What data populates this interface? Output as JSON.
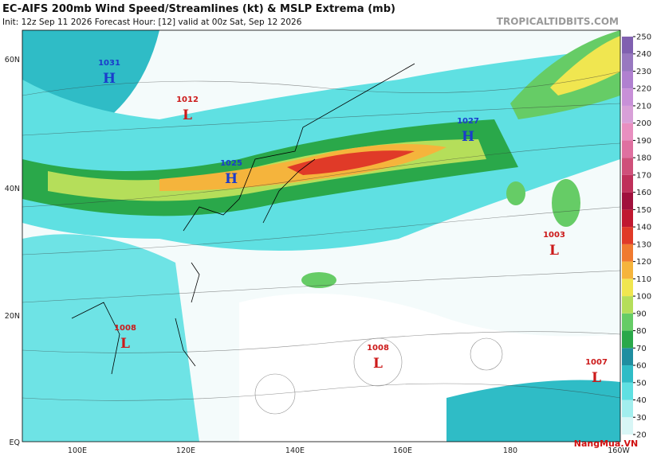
{
  "header": {
    "title": "EC-AIFS 200mb Wind Speed/Streamlines (kt) & MSLP Extrema (mb)",
    "subtitle": "Init: 12z Sep 11 2026   Forecast Hour: [12]   valid at 00z Sat, Sep 12 2026",
    "site": "TROPICALTIDBITS.COM"
  },
  "lat_labels": [
    "60N",
    "40N",
    "20N",
    "EQ"
  ],
  "lon_labels": [
    "100E",
    "120E",
    "140E",
    "160E",
    "180",
    "160W"
  ],
  "pressure_centers": [
    {
      "letter": "H",
      "value": "1031"
    },
    {
      "letter": "L",
      "value": "1012"
    },
    {
      "letter": "H",
      "value": "1025"
    },
    {
      "letter": "H",
      "value": "1027"
    },
    {
      "letter": "L",
      "value": "1003"
    },
    {
      "letter": "L",
      "value": "1008"
    },
    {
      "letter": "L",
      "value": "1008"
    },
    {
      "letter": "L",
      "value": "1007"
    }
  ],
  "colorbar": {
    "ticks": [
      20,
      30,
      40,
      50,
      60,
      70,
      80,
      90,
      100,
      110,
      120,
      130,
      140,
      150,
      160,
      170,
      180,
      190,
      200,
      210,
      220,
      230,
      240,
      250
    ],
    "colors": [
      "#d8f6f6",
      "#a2eeee",
      "#5fe0e2",
      "#2fbcc6",
      "#1f8ea0",
      "#2aa84a",
      "#66cc66",
      "#b5de5a",
      "#f0e650",
      "#f5b43c",
      "#f07a30",
      "#e03a28",
      "#c01830",
      "#a0103c",
      "#bf305a",
      "#cf507a",
      "#df70a0",
      "#e88fc0",
      "#d8a0d8",
      "#c890d8",
      "#b080d0",
      "#9878c0",
      "#8060b0"
    ]
  },
  "watermark": "NangMua.VN"
}
